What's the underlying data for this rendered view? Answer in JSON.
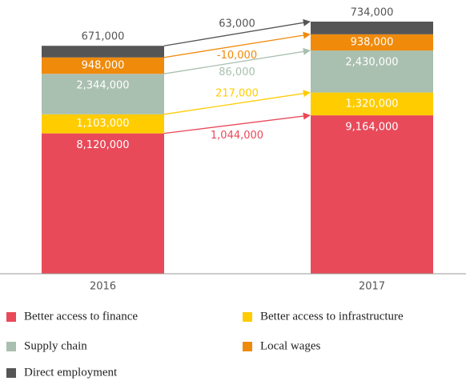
{
  "chart_data": {
    "type": "stacked_bar",
    "categories": [
      "2016",
      "2017"
    ],
    "series": [
      {
        "name": "Better access to finance",
        "color": "#e84a5a",
        "values": [
          8120000,
          9164000
        ],
        "value_labels": [
          "8,120,000",
          "9,164,000"
        ],
        "change": 1044000,
        "change_label": "1,044,000"
      },
      {
        "name": "Better access to infrastructure",
        "color": "#ffcc00",
        "values": [
          1103000,
          1320000
        ],
        "value_labels": [
          "1,103,000",
          "1,320,000"
        ],
        "change": 217000,
        "change_label": "217,000"
      },
      {
        "name": "Supply chain",
        "color": "#a9bfb0",
        "values": [
          2344000,
          2430000
        ],
        "value_labels": [
          "2,344,000",
          "2,430,000"
        ],
        "change": 86000,
        "change_label": "86,000"
      },
      {
        "name": "Local wages",
        "color": "#f08a0b",
        "values": [
          948000,
          938000
        ],
        "value_labels": [
          "948,000",
          "938,000"
        ],
        "change": -10000,
        "change_label": "-10,000"
      },
      {
        "name": "Direct employment",
        "color": "#555555",
        "values": [
          671000,
          734000
        ],
        "value_labels": [
          "671,000",
          "734,000"
        ],
        "change": 63000,
        "change_label": "63,000"
      }
    ]
  }
}
